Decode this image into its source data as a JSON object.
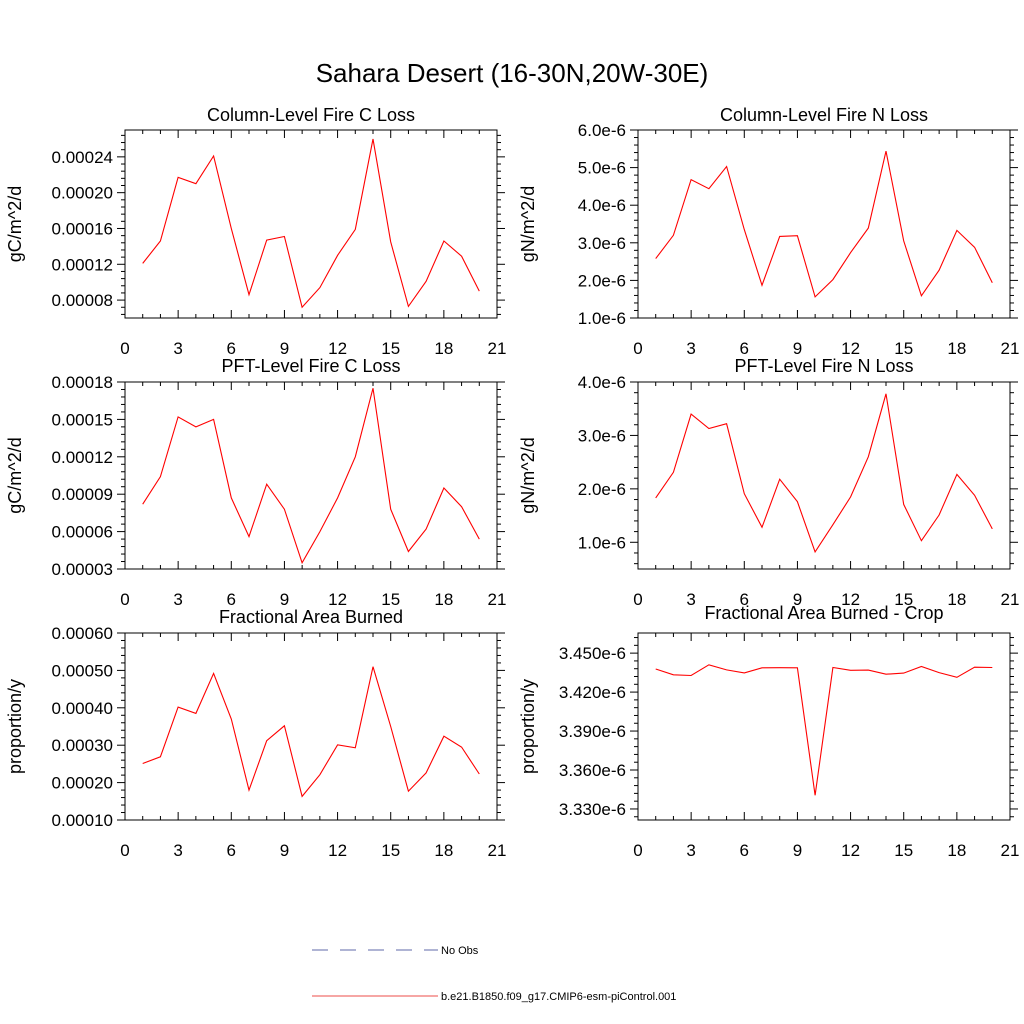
{
  "page": {
    "title": "Sahara Desert (16-30N,20W-30E)"
  },
  "legend": {
    "items": [
      {
        "label": "No Obs",
        "color": "#2b3a8c",
        "dash": true
      },
      {
        "label": "b.e21.B1850.f09_g17.CMIP6-esm-piControl.001",
        "color": "#e8130c",
        "dash": false
      }
    ]
  },
  "colors": {
    "series": "#ff0000",
    "axis": "#000000"
  },
  "chart_data": [
    {
      "type": "line",
      "title": "Column-Level Fire C Loss",
      "ylabel": "gC/m^2/d",
      "xlim": [
        0,
        21
      ],
      "xticks": [
        0,
        3,
        6,
        9,
        12,
        15,
        18,
        21
      ],
      "ylim": [
        6e-05,
        0.00027
      ],
      "yticks": [
        8e-05,
        0.00012,
        0.00016,
        0.0002,
        0.00024
      ],
      "ytick_labels": [
        "0.00008",
        "0.00012",
        "0.00016",
        "0.00020",
        "0.00024"
      ],
      "x": [
        1,
        2,
        3,
        4,
        5,
        6,
        7,
        8,
        9,
        10,
        11,
        12,
        13,
        14,
        15,
        16,
        17,
        18,
        19,
        20
      ],
      "series": [
        {
          "name": "b.e21.B1850.f09_g17.CMIP6-esm-piControl.001",
          "values": [
            0.000121,
            0.000146,
            0.000217,
            0.00021,
            0.000241,
            0.00016,
            8.6e-05,
            0.000147,
            0.000151,
            7.2e-05,
            9.4e-05,
            0.00013,
            0.000159,
            0.00026,
            0.000145,
            7.3e-05,
            0.000101,
            0.000146,
            0.000129,
            9e-05
          ]
        }
      ]
    },
    {
      "type": "line",
      "title": "Column-Level Fire N Loss",
      "ylabel": "gN/m^2/d",
      "xlim": [
        0,
        21
      ],
      "xticks": [
        0,
        3,
        6,
        9,
        12,
        15,
        18,
        21
      ],
      "ylim": [
        1e-06,
        6e-06
      ],
      "yticks": [
        1e-06,
        2e-06,
        3e-06,
        4e-06,
        5e-06,
        6e-06
      ],
      "ytick_labels": [
        "1.0e-6",
        "2.0e-6",
        "3.0e-6",
        "4.0e-6",
        "5.0e-6",
        "6.0e-6"
      ],
      "x": [
        1,
        2,
        3,
        4,
        5,
        6,
        7,
        8,
        9,
        10,
        11,
        12,
        13,
        14,
        15,
        16,
        17,
        18,
        19,
        20
      ],
      "series": [
        {
          "name": "b.e21.B1850.f09_g17.CMIP6-esm-piControl.001",
          "values": [
            2.58e-06,
            3.2e-06,
            4.68e-06,
            4.44e-06,
            5.03e-06,
            3.35e-06,
            1.87e-06,
            3.17e-06,
            3.19e-06,
            1.56e-06,
            2.02e-06,
            2.74e-06,
            3.39e-06,
            5.44e-06,
            3.05e-06,
            1.59e-06,
            2.27e-06,
            3.33e-06,
            2.88e-06,
            1.94e-06
          ]
        }
      ]
    },
    {
      "type": "line",
      "title": "PFT-Level Fire C Loss",
      "ylabel": "gC/m^2/d",
      "xlim": [
        0,
        21
      ],
      "xticks": [
        0,
        3,
        6,
        9,
        12,
        15,
        18,
        21
      ],
      "ylim": [
        3e-05,
        0.00018
      ],
      "yticks": [
        3e-05,
        6e-05,
        9e-05,
        0.00012,
        0.00015,
        0.00018
      ],
      "ytick_labels": [
        "0.00003",
        "0.00006",
        "0.00009",
        "0.00012",
        "0.00015",
        "0.00018"
      ],
      "x": [
        1,
        2,
        3,
        4,
        5,
        6,
        7,
        8,
        9,
        10,
        11,
        12,
        13,
        14,
        15,
        16,
        17,
        18,
        19,
        20
      ],
      "series": [
        {
          "name": "b.e21.B1850.f09_g17.CMIP6-esm-piControl.001",
          "values": [
            8.2e-05,
            0.000104,
            0.000152,
            0.000144,
            0.00015,
            8.7e-05,
            5.6e-05,
            9.8e-05,
            7.8e-05,
            3.5e-05,
            6e-05,
            8.7e-05,
            0.00012,
            0.000175,
            7.8e-05,
            4.4e-05,
            6.2e-05,
            9.5e-05,
            8e-05,
            5.4e-05
          ]
        }
      ]
    },
    {
      "type": "line",
      "title": "PFT-Level Fire N Loss",
      "ylabel": "gN/m^2/d",
      "xlim": [
        0,
        21
      ],
      "xticks": [
        0,
        3,
        6,
        9,
        12,
        15,
        18,
        21
      ],
      "ylim": [
        5e-07,
        4e-06
      ],
      "yticks": [
        1e-06,
        2e-06,
        3e-06,
        4e-06
      ],
      "ytick_labels": [
        "1.0e-6",
        "2.0e-6",
        "3.0e-6",
        "4.0e-6"
      ],
      "x": [
        1,
        2,
        3,
        4,
        5,
        6,
        7,
        8,
        9,
        10,
        11,
        12,
        13,
        14,
        15,
        16,
        17,
        18,
        19,
        20
      ],
      "series": [
        {
          "name": "b.e21.B1850.f09_g17.CMIP6-esm-piControl.001",
          "values": [
            1.83e-06,
            2.31e-06,
            3.4e-06,
            3.13e-06,
            3.22e-06,
            1.91e-06,
            1.28e-06,
            2.18e-06,
            1.76e-06,
            8.2e-07,
            1.33e-06,
            1.85e-06,
            2.6e-06,
            3.78e-06,
            1.71e-06,
            1.03e-06,
            1.51e-06,
            2.27e-06,
            1.88e-06,
            1.25e-06
          ]
        }
      ]
    },
    {
      "type": "line",
      "title": "Fractional Area Burned",
      "ylabel": "proportion/y",
      "xlim": [
        0,
        21
      ],
      "xticks": [
        0,
        3,
        6,
        9,
        12,
        15,
        18,
        21
      ],
      "ylim": [
        0.0001,
        0.0006
      ],
      "yticks": [
        0.0001,
        0.0002,
        0.0003,
        0.0004,
        0.0005,
        0.0006
      ],
      "ytick_labels": [
        "0.00010",
        "0.00020",
        "0.00030",
        "0.00040",
        "0.00050",
        "0.00060"
      ],
      "x": [
        1,
        2,
        3,
        4,
        5,
        6,
        7,
        8,
        9,
        10,
        11,
        12,
        13,
        14,
        15,
        16,
        17,
        18,
        19,
        20
      ],
      "series": [
        {
          "name": "b.e21.B1850.f09_g17.CMIP6-esm-piControl.001",
          "values": [
            0.000251,
            0.000269,
            0.000402,
            0.000385,
            0.000492,
            0.00037,
            0.00018,
            0.000312,
            0.000352,
            0.000163,
            0.000221,
            0.000301,
            0.000293,
            0.00051,
            0.00035,
            0.000177,
            0.000226,
            0.000324,
            0.000295,
            0.000223
          ]
        }
      ]
    },
    {
      "type": "line",
      "title": "Fractional Area Burned - Crop",
      "ylabel": "proportion/y",
      "xlim": [
        0,
        21
      ],
      "xticks": [
        0,
        3,
        6,
        9,
        12,
        15,
        18,
        21
      ],
      "ylim": [
        3.3215e-06,
        3.4655e-06
      ],
      "yticks": [
        3.33e-06,
        3.36e-06,
        3.39e-06,
        3.42e-06,
        3.45e-06
      ],
      "ytick_labels": [
        "3.330e-6",
        "3.360e-6",
        "3.390e-6",
        "3.420e-6",
        "3.450e-6"
      ],
      "x": [
        1,
        2,
        3,
        4,
        5,
        6,
        7,
        8,
        9,
        10,
        11,
        12,
        13,
        14,
        15,
        16,
        17,
        18,
        19,
        20
      ],
      "series": [
        {
          "name": "b.e21.B1850.f09_g17.CMIP6-esm-piControl.001",
          "values": [
            3.4378e-06,
            3.4333e-06,
            3.4328e-06,
            3.441e-06,
            3.4371e-06,
            3.4348e-06,
            3.4387e-06,
            3.4388e-06,
            3.4387e-06,
            3.3405e-06,
            3.4389e-06,
            3.4368e-06,
            3.4369e-06,
            3.4338e-06,
            3.4346e-06,
            3.4397e-06,
            3.435e-06,
            3.4314e-06,
            3.4392e-06,
            3.4389e-06
          ]
        }
      ]
    }
  ]
}
